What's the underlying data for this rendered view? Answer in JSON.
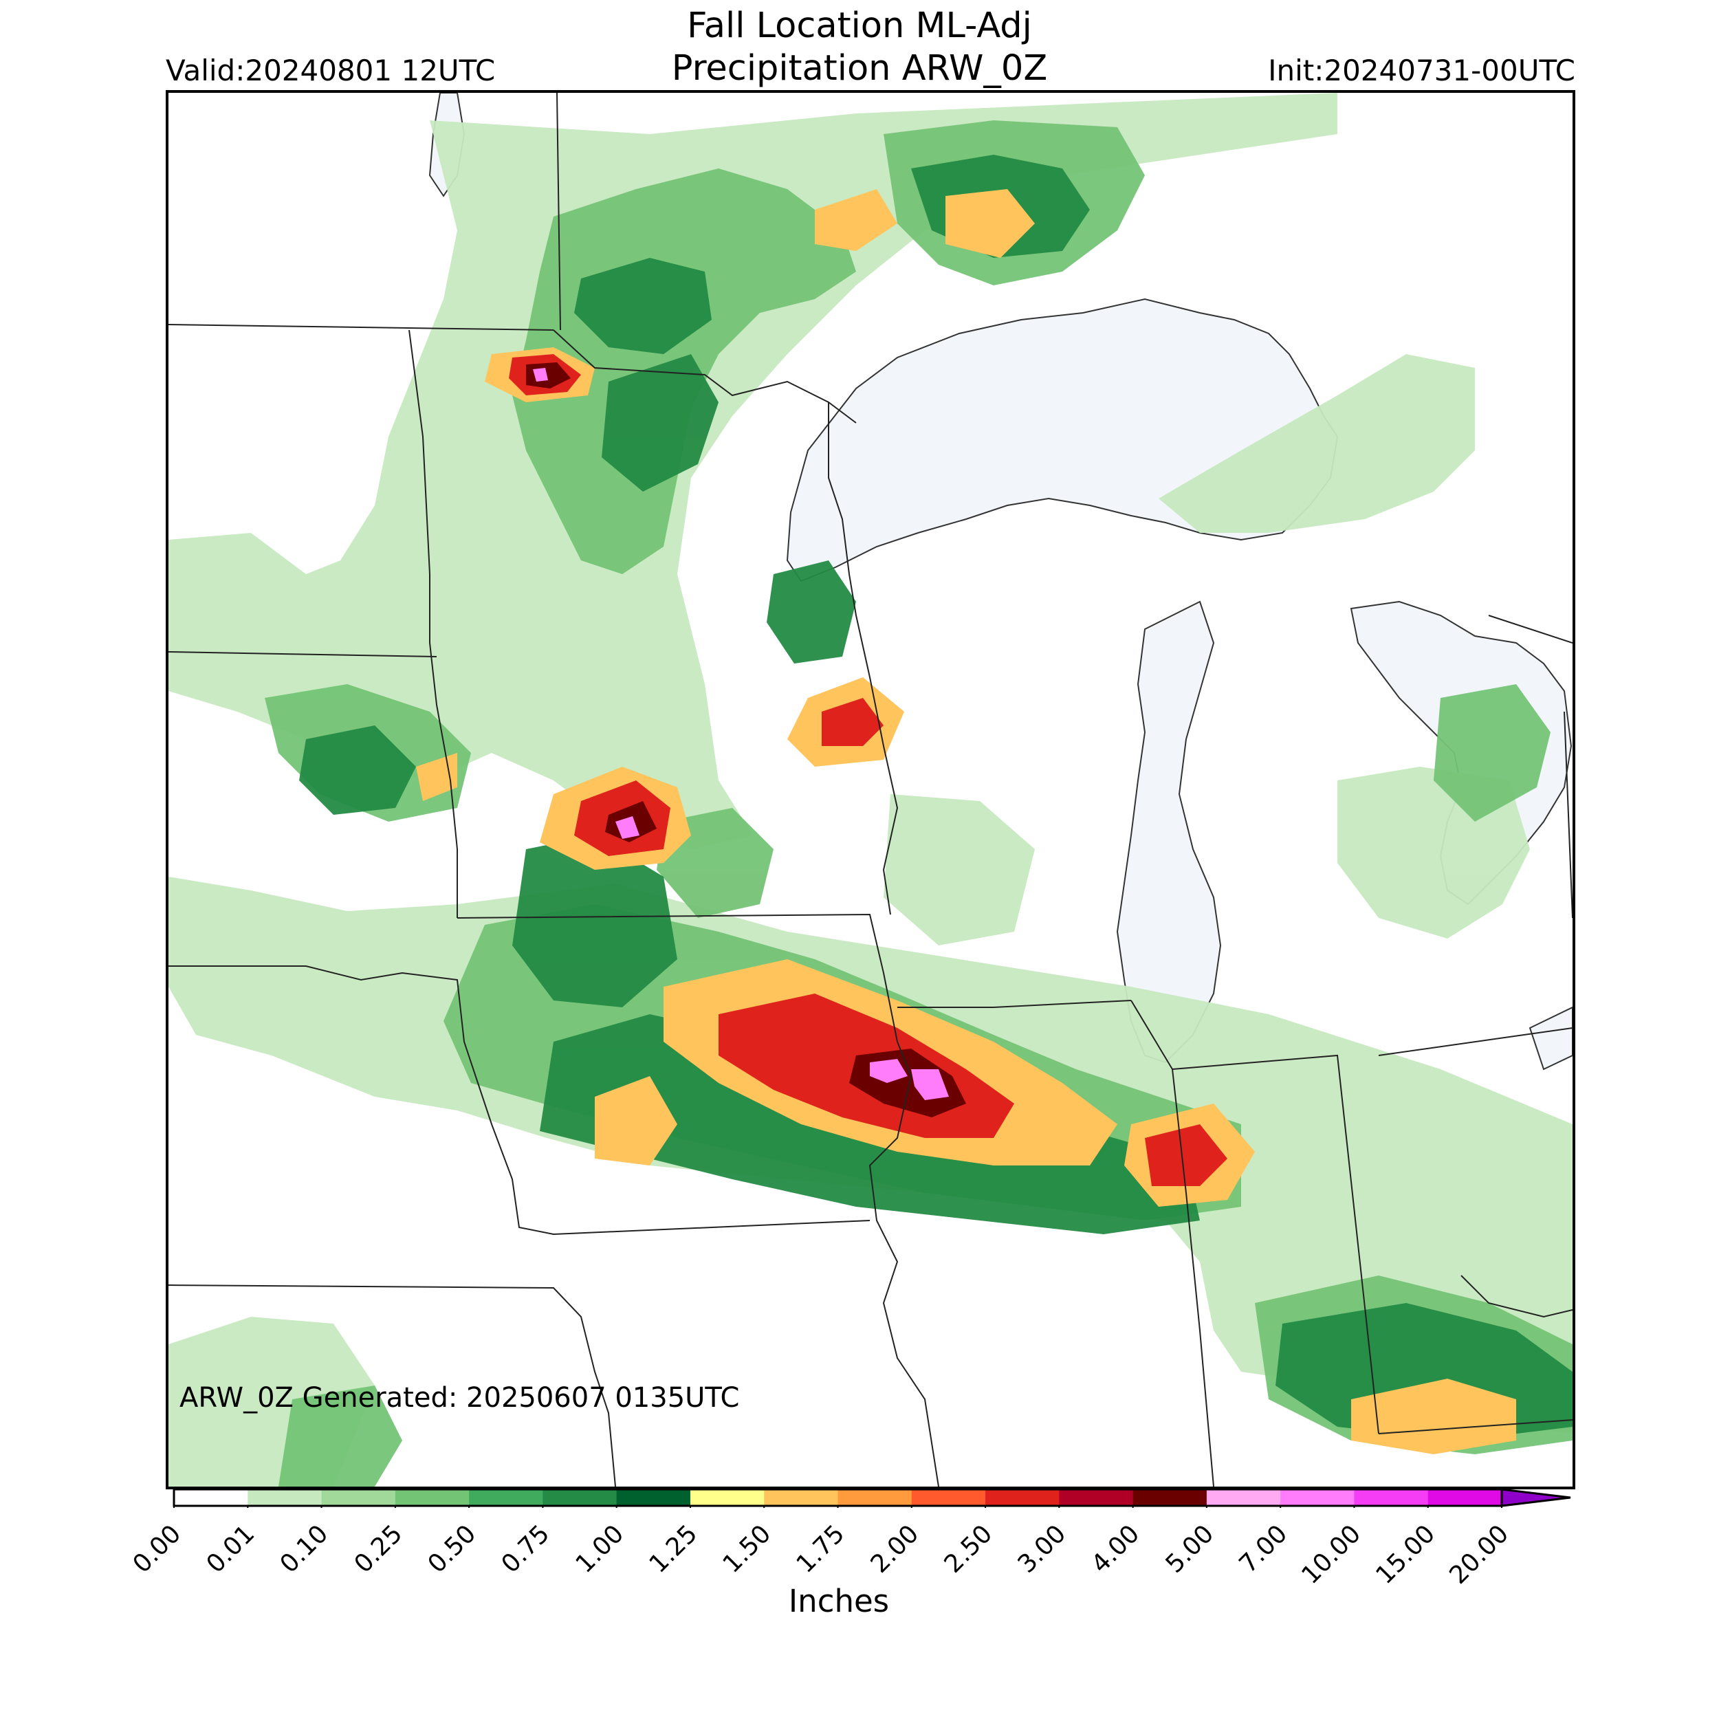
{
  "title": {
    "line1": "Fall Location ML-Adj",
    "line2": "Precipitation ARW_0Z"
  },
  "valid_time": "Valid:20240801 12UTC",
  "init_time": "Init:20240731-00UTC",
  "generated_note": "ARW_0Z Generated: 20250607 0135UTC",
  "colorbar": {
    "label": "Inches",
    "ticks": [
      "0.00",
      "0.01",
      "0.10",
      "0.25",
      "0.50",
      "0.75",
      "1.00",
      "1.25",
      "1.50",
      "1.75",
      "2.00",
      "2.50",
      "3.00",
      "4.00",
      "5.00",
      "7.00",
      "10.00",
      "15.00",
      "20.00"
    ],
    "colors": [
      "#ffffff",
      "#c7e9c0",
      "#a1d99b",
      "#74c476",
      "#41ab5d",
      "#238b45",
      "#00612e",
      "#ffff8c",
      "#ffc45c",
      "#ff9b3d",
      "#ff5a2e",
      "#e0221c",
      "#b00026",
      "#6b0000",
      "#ffaaf2",
      "#ff7dfa",
      "#f43df4",
      "#e00ae6",
      "#8f00c8"
    ],
    "extend": "max"
  },
  "map": {
    "region": "Upper Midwest / Great Lakes",
    "water_color": "#f2f6fb",
    "border_color": "#222222"
  }
}
